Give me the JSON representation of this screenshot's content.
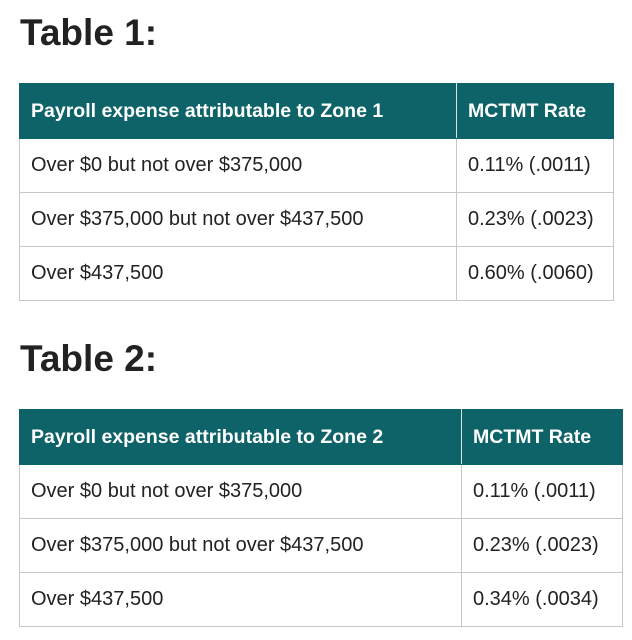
{
  "tables": [
    {
      "heading": "Table 1:",
      "columns": [
        "Payroll expense attributable to Zone 1",
        "MCTMT Rate"
      ],
      "rows": [
        [
          "Over $0 but not over $375,000",
          "0.11% (.0011)"
        ],
        [
          "Over $375,000 but not over $437,500",
          "0.23% (.0023)"
        ],
        [
          "Over $437,500",
          "0.60% (.0060)"
        ]
      ]
    },
    {
      "heading": "Table 2:",
      "columns": [
        "Payroll expense attributable to Zone 2",
        "MCTMT Rate"
      ],
      "rows": [
        [
          "Over $0 but not over $375,000",
          "0.11% (.0011)"
        ],
        [
          "Over $375,000 but not over $437,500",
          "0.23% (.0023)"
        ],
        [
          "Over $437,500",
          "0.34% (.0034)"
        ]
      ]
    }
  ],
  "colors": {
    "header_background": "#0d6367",
    "header_text": "#ffffff",
    "body_text": "#222222",
    "cell_border": "#c7c7c7"
  }
}
